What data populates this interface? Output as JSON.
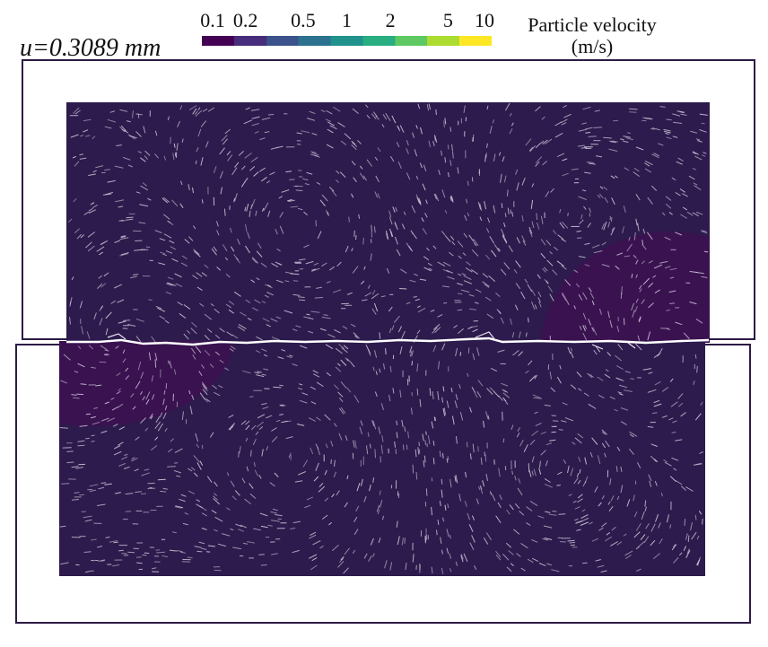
{
  "displacement_label": "u=0.3089 mm",
  "colorbar": {
    "title_line1": "Particle velocity",
    "title_line2": "(m/s)",
    "ticks": [
      "0.1",
      "0.2",
      "0.5",
      "1",
      "2",
      "5",
      "10"
    ],
    "tick_values": [
      0.1,
      0.2,
      0.5,
      1,
      2,
      5,
      10
    ],
    "scale": "log",
    "range": [
      0.1,
      10
    ],
    "colors": [
      "#440154",
      "#472d7b",
      "#3b528b",
      "#2c728e",
      "#21918c",
      "#28ae80",
      "#5ec962",
      "#addc30",
      "#fde725"
    ]
  },
  "colors": {
    "domain_fill": "#2d1b4d",
    "region_fill": "#3a1250",
    "crack": "#ffffff",
    "arrows": "#c9c3d6",
    "frame": "#2d1a45"
  }
}
